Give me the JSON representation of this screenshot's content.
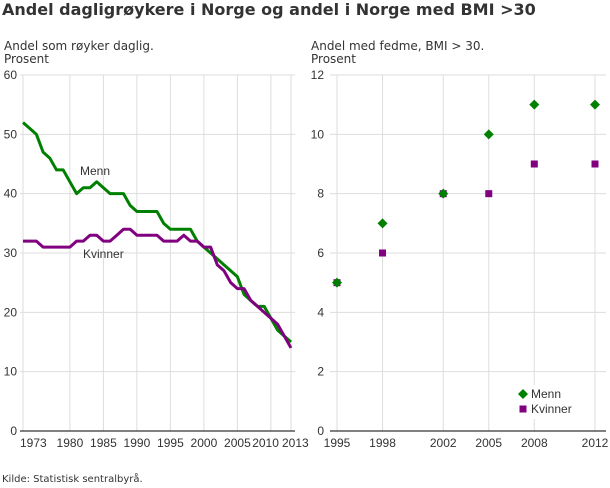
{
  "title": "Andel dagligrøykere i Norge og andel i Norge med BMI >30",
  "source": "Kilde: Statistisk sentralbyrå.",
  "chart_data": [
    {
      "type": "line",
      "ylabel_line1": "Andel som røyker daglig.",
      "ylabel_line2": "Prosent",
      "ylim": [
        0,
        60
      ],
      "yticks": [
        0,
        10,
        20,
        30,
        40,
        50,
        60
      ],
      "xlim": [
        1973,
        2013
      ],
      "xticks": [
        1973,
        1980,
        1985,
        1990,
        1995,
        2000,
        2005,
        2010,
        2013
      ],
      "grid": true,
      "x": [
        1973,
        1974,
        1975,
        1976,
        1977,
        1978,
        1979,
        1980,
        1981,
        1982,
        1983,
        1984,
        1985,
        1986,
        1987,
        1988,
        1989,
        1990,
        1991,
        1992,
        1993,
        1994,
        1995,
        1996,
        1997,
        1998,
        1999,
        2000,
        2001,
        2002,
        2003,
        2004,
        2005,
        2006,
        2007,
        2008,
        2009,
        2010,
        2011,
        2012,
        2013
      ],
      "series": [
        {
          "name": "Menn",
          "color": "#008000",
          "values": [
            52,
            51,
            50,
            47,
            46,
            44,
            44,
            42,
            40,
            41,
            41,
            42,
            41,
            40,
            40,
            40,
            38,
            37,
            37,
            37,
            37,
            35,
            34,
            34,
            34,
            34,
            32,
            31,
            30,
            29,
            28,
            27,
            26,
            23,
            22,
            21,
            21,
            19,
            17,
            16,
            15
          ]
        },
        {
          "name": "Kvinner",
          "color": "#800080",
          "values": [
            32,
            32,
            32,
            31,
            31,
            31,
            31,
            31,
            32,
            32,
            33,
            33,
            32,
            32,
            33,
            34,
            34,
            33,
            33,
            33,
            33,
            32,
            32,
            32,
            33,
            32,
            32,
            31,
            31,
            28,
            27,
            25,
            24,
            24,
            22,
            21,
            20,
            19,
            18,
            16,
            14
          ]
        }
      ]
    },
    {
      "type": "scatter",
      "ylabel_line1": "Andel med fedme, BMI > 30.",
      "ylabel_line2": "Prosent",
      "ylim": [
        0,
        12
      ],
      "yticks": [
        0,
        2,
        4,
        6,
        8,
        10,
        12
      ],
      "xticks": [
        1995,
        1998,
        2002,
        2005,
        2008,
        2012
      ],
      "grid": true,
      "legend": "bottom-right",
      "x": [
        1995,
        1998,
        2002,
        2005,
        2008,
        2012
      ],
      "series": [
        {
          "name": "Menn",
          "color": "#008000",
          "marker": "diamond",
          "values": [
            5,
            7,
            8,
            10,
            11,
            11
          ]
        },
        {
          "name": "Kvinner",
          "color": "#800080",
          "marker": "square",
          "values": [
            5,
            6,
            8,
            8,
            9,
            9
          ]
        }
      ]
    }
  ]
}
